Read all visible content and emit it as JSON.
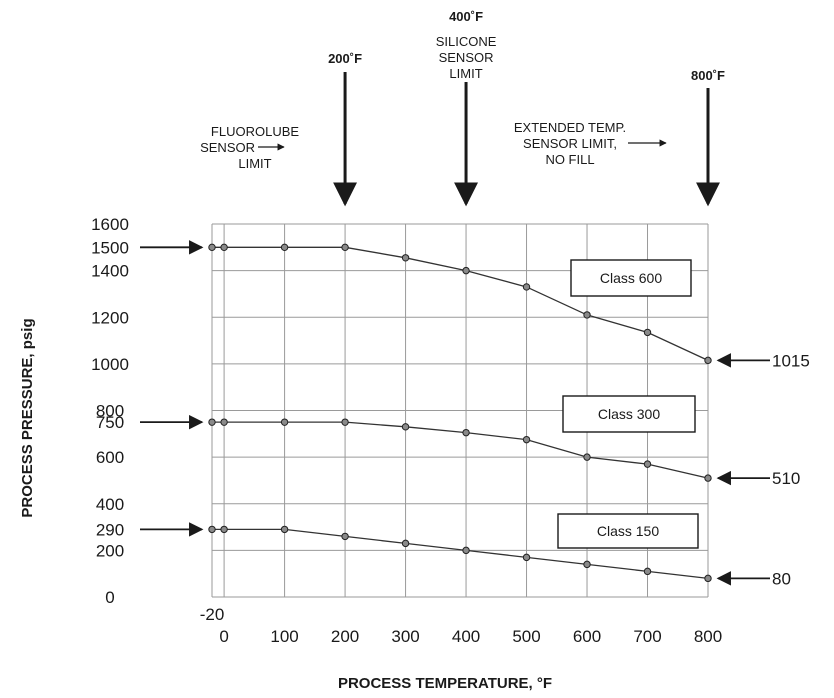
{
  "chart_data": {
    "type": "line",
    "xlabel": "PROCESS TEMPERATURE,  °F",
    "ylabel": "PROCESS PRESSURE, psig",
    "xlim": [
      -20,
      800
    ],
    "ylim": [
      0,
      1600
    ],
    "grid": true,
    "x_ticks": [
      {
        "value": -20,
        "label": "-20"
      },
      {
        "value": 0,
        "label": "0"
      },
      {
        "value": 100,
        "label": "100"
      },
      {
        "value": 200,
        "label": "200"
      },
      {
        "value": 300,
        "label": "300"
      },
      {
        "value": 400,
        "label": "400"
      },
      {
        "value": 500,
        "label": "500"
      },
      {
        "value": 600,
        "label": "600"
      },
      {
        "value": 700,
        "label": "700"
      },
      {
        "value": 800,
        "label": "800"
      }
    ],
    "y_ticks": [
      {
        "value": 0,
        "label": "0"
      },
      {
        "value": 200,
        "label": "200"
      },
      {
        "value": 400,
        "label": "400"
      },
      {
        "value": 600,
        "label": "600"
      },
      {
        "value": 800,
        "label": "800"
      },
      {
        "value": 1000,
        "label": "1000"
      },
      {
        "value": 1200,
        "label": "1200"
      },
      {
        "value": 1400,
        "label": "1400"
      },
      {
        "value": 1600,
        "label": "1600"
      }
    ],
    "extra_y_ticks": [
      {
        "value": 290,
        "label": "290"
      },
      {
        "value": 750,
        "label": "750"
      },
      {
        "value": 1500,
        "label": "1500"
      }
    ],
    "x": [
      -20,
      0,
      100,
      200,
      300,
      400,
      500,
      600,
      700,
      800
    ],
    "series": [
      {
        "name": "Class 600",
        "values": [
          1500,
          1500,
          1500,
          1500,
          1455,
          1400,
          1330,
          1210,
          1135,
          1015
        ]
      },
      {
        "name": "Class 300",
        "values": [
          750,
          750,
          750,
          750,
          730,
          705,
          675,
          600,
          570,
          510
        ]
      },
      {
        "name": "Class 150",
        "values": [
          290,
          290,
          290,
          260,
          230,
          200,
          170,
          140,
          110,
          80
        ]
      }
    ],
    "end_labels": [
      {
        "series": 0,
        "label": "1015"
      },
      {
        "series": 1,
        "label": "510"
      },
      {
        "series": 2,
        "label": "80"
      }
    ],
    "limits": [
      {
        "x": 200,
        "temp_label": "200˚F",
        "text": [
          "FLUOROLUBE",
          "SENSOR",
          "LIMIT"
        ]
      },
      {
        "x": 400,
        "temp_label": "400˚F",
        "text": [
          "SILICONE",
          "SENSOR",
          "LIMIT"
        ]
      },
      {
        "x": 800,
        "temp_label": "800˚F",
        "text": [
          "EXTENDED TEMP.",
          "SENSOR LIMIT,",
          "NO FILL"
        ]
      }
    ],
    "series_box_labels": [
      "Class 600",
      "Class 300",
      "Class 150"
    ]
  }
}
